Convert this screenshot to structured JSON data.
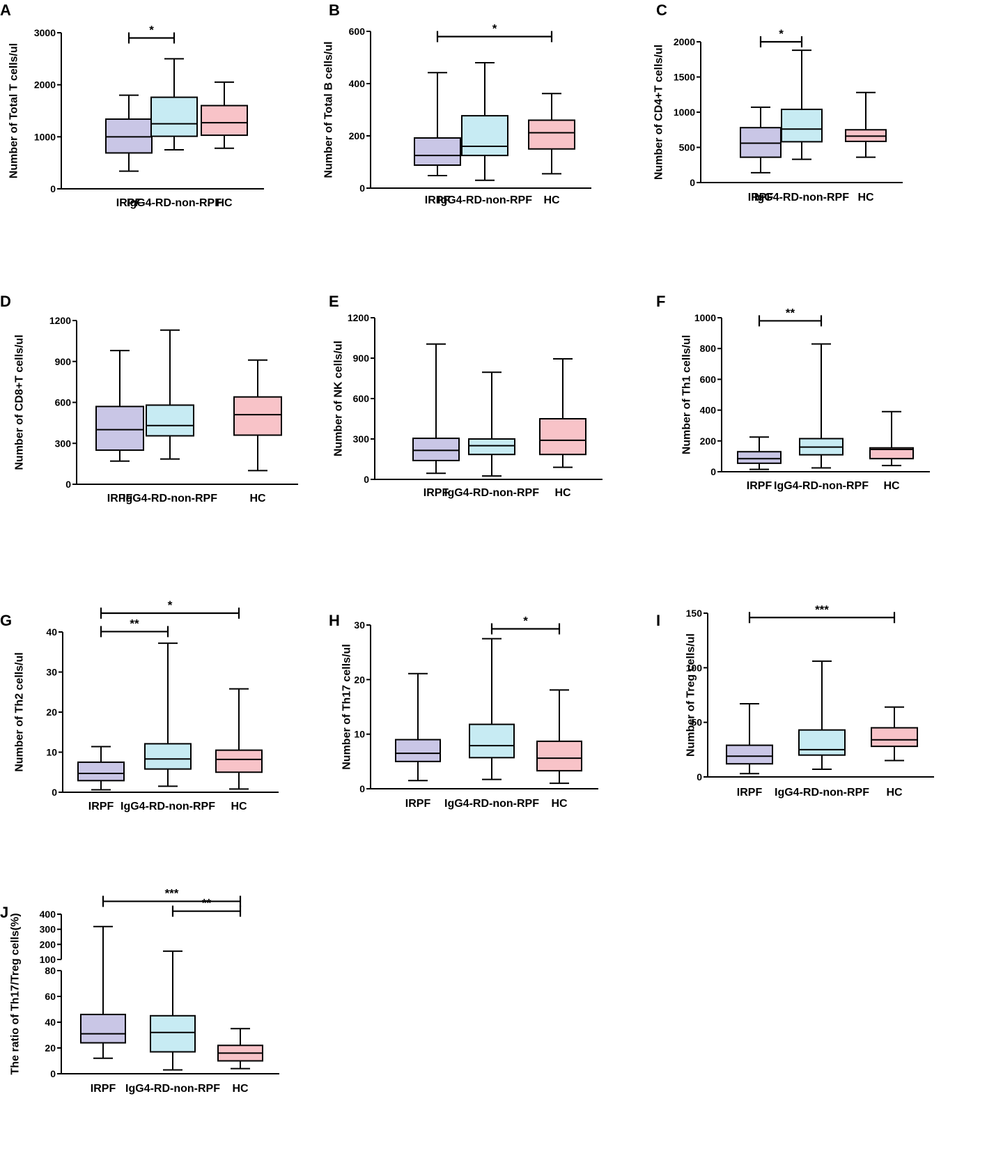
{
  "colors": {
    "IRPF": "#c9c6e6",
    "IgG4-RD-non-RPF": "#c7ebf3",
    "HC": "#f8c3c8",
    "line": "#000000"
  },
  "chart_data": [
    {
      "panel": "A",
      "type": "boxplot",
      "ylabel": "Number of Total T cells/ul",
      "categories": [
        "IRPF",
        "IgG4-RD-non-RPF",
        "HC"
      ],
      "ylim": [
        0,
        3000
      ],
      "yticks": [
        0,
        1000,
        2000,
        3000
      ],
      "boxes": [
        {
          "min": 340,
          "q1": 690,
          "median": 1000,
          "q3": 1340,
          "max": 1800
        },
        {
          "min": 750,
          "q1": 1010,
          "median": 1250,
          "q3": 1760,
          "max": 2500
        },
        {
          "min": 780,
          "q1": 1030,
          "median": 1270,
          "q3": 1600,
          "max": 2050
        }
      ],
      "sig": [
        {
          "from": 0,
          "to": 1,
          "label": "*",
          "y": 2900
        }
      ]
    },
    {
      "panel": "B",
      "type": "boxplot",
      "ylabel": "Number of Total B cells/ul",
      "categories": [
        "IRPF",
        "IgG4-RD-non-RPF",
        "HC"
      ],
      "ylim": [
        0,
        600
      ],
      "yticks": [
        0,
        200,
        400,
        600
      ],
      "boxes": [
        {
          "min": 48,
          "q1": 88,
          "median": 125,
          "q3": 192,
          "max": 442
        },
        {
          "min": 30,
          "q1": 125,
          "median": 160,
          "q3": 277,
          "max": 480
        },
        {
          "min": 55,
          "q1": 150,
          "median": 212,
          "q3": 260,
          "max": 362
        }
      ],
      "sig": [
        {
          "from": 0,
          "to": 2,
          "label": "*",
          "y": 580
        }
      ]
    },
    {
      "panel": "C",
      "type": "boxplot",
      "ylabel": "Number of CD4+T cells/ul",
      "categories": [
        "IRPF",
        "IgG4-RD-non-RPF",
        "HC"
      ],
      "ylim": [
        0,
        2000
      ],
      "yticks": [
        0,
        500,
        1000,
        1500,
        2000
      ],
      "boxes": [
        {
          "min": 140,
          "q1": 360,
          "median": 560,
          "q3": 780,
          "max": 1070
        },
        {
          "min": 330,
          "q1": 580,
          "median": 760,
          "q3": 1040,
          "max": 1880
        },
        {
          "min": 360,
          "q1": 585,
          "median": 660,
          "q3": 750,
          "max": 1280
        }
      ],
      "sig": [
        {
          "from": 0,
          "to": 1,
          "label": "*",
          "y": 2000
        }
      ]
    },
    {
      "panel": "D",
      "type": "boxplot",
      "ylabel": "Number of CD8+T cells/ul",
      "categories": [
        "IRPF",
        "IgG4-RD-non-RPF",
        "HC"
      ],
      "ylim": [
        0,
        1200
      ],
      "yticks": [
        0,
        300,
        600,
        900,
        1200
      ],
      "boxes": [
        {
          "min": 170,
          "q1": 250,
          "median": 400,
          "q3": 570,
          "max": 980
        },
        {
          "min": 185,
          "q1": 355,
          "median": 430,
          "q3": 580,
          "max": 1130
        },
        {
          "min": 100,
          "q1": 360,
          "median": 510,
          "q3": 640,
          "max": 910
        }
      ],
      "sig": []
    },
    {
      "panel": "E",
      "type": "boxplot",
      "ylabel": "Number of NK cells/ul",
      "categories": [
        "IRPF",
        "IgG4-RD-non-RPF",
        "HC"
      ],
      "ylim": [
        0,
        1200
      ],
      "yticks": [
        0,
        300,
        600,
        900,
        1200
      ],
      "boxes": [
        {
          "min": 45,
          "q1": 140,
          "median": 215,
          "q3": 305,
          "max": 1005
        },
        {
          "min": 25,
          "q1": 185,
          "median": 250,
          "q3": 300,
          "max": 795
        },
        {
          "min": 90,
          "q1": 185,
          "median": 290,
          "q3": 450,
          "max": 895
        }
      ],
      "sig": []
    },
    {
      "panel": "F",
      "type": "boxplot",
      "ylabel": "Number of Th1 cells/ul",
      "categories": [
        "IRPF",
        "IgG4-RD-non-RPF",
        "HC"
      ],
      "ylim": [
        0,
        1000
      ],
      "yticks": [
        0,
        200,
        400,
        600,
        800,
        1000
      ],
      "boxes": [
        {
          "min": 15,
          "q1": 55,
          "median": 85,
          "q3": 130,
          "max": 225
        },
        {
          "min": 25,
          "q1": 110,
          "median": 160,
          "q3": 215,
          "max": 830
        },
        {
          "min": 40,
          "q1": 85,
          "median": 145,
          "q3": 155,
          "max": 390
        }
      ],
      "sig": [
        {
          "from": 0,
          "to": 1,
          "label": "**",
          "y": 980
        }
      ]
    },
    {
      "panel": "G",
      "type": "boxplot",
      "ylabel": "Number of Th2 cells/ul",
      "categories": [
        "IRPF",
        "IgG4-RD-non-RPF",
        "HC"
      ],
      "ylim": [
        0,
        40
      ],
      "yticks": [
        0,
        10,
        20,
        30,
        40
      ],
      "boxes": [
        {
          "min": 0.6,
          "q1": 2.9,
          "median": 4.7,
          "q3": 7.5,
          "max": 11.4
        },
        {
          "min": 1.5,
          "q1": 5.8,
          "median": 8.3,
          "q3": 12.1,
          "max": 37.2
        },
        {
          "min": 0.8,
          "q1": 5.0,
          "median": 8.2,
          "q3": 10.5,
          "max": 25.8
        }
      ],
      "sig": [
        {
          "from": 0,
          "to": 1,
          "label": "**",
          "y": 40.1
        },
        {
          "from": 0,
          "to": 2,
          "label": "*",
          "y": 44.7
        }
      ]
    },
    {
      "panel": "H",
      "type": "boxplot",
      "ylabel": "Number of Th17 cells/ul",
      "categories": [
        "IRPF",
        "IgG4-RD-non-RPF",
        "HC"
      ],
      "ylim": [
        0,
        30
      ],
      "yticks": [
        0,
        10,
        20,
        30
      ],
      "boxes": [
        {
          "min": 1.5,
          "q1": 5.0,
          "median": 6.5,
          "q3": 9.0,
          "max": 21.1
        },
        {
          "min": 1.7,
          "q1": 5.7,
          "median": 7.9,
          "q3": 11.8,
          "max": 27.5
        },
        {
          "min": 1.0,
          "q1": 3.3,
          "median": 5.6,
          "q3": 8.7,
          "max": 18.1
        }
      ],
      "sig": [
        {
          "from": 1,
          "to": 2,
          "label": "*",
          "y": 29.3
        }
      ]
    },
    {
      "panel": "I",
      "type": "boxplot",
      "ylabel": "Number of Treg cells/ul",
      "categories": [
        "IRPF",
        "IgG4-RD-non-RPF",
        "HC"
      ],
      "ylim": [
        0,
        150
      ],
      "yticks": [
        0,
        50,
        100,
        150
      ],
      "boxes": [
        {
          "min": 3,
          "q1": 12,
          "median": 19,
          "q3": 29,
          "max": 67
        },
        {
          "min": 7,
          "q1": 20,
          "median": 25,
          "q3": 43,
          "max": 106
        },
        {
          "min": 15,
          "q1": 28,
          "median": 34,
          "q3": 45,
          "max": 64
        }
      ],
      "sig": [
        {
          "from": 0,
          "to": 2,
          "label": "***",
          "y": 146
        }
      ]
    },
    {
      "panel": "J",
      "type": "boxplot",
      "ylabel": "The ratio of Th17/Treg cells(%)",
      "categories": [
        "IRPF",
        "IgG4-RD-non-RPF",
        "HC"
      ],
      "broken_axis": true,
      "lower_ylim": [
        0,
        80
      ],
      "lower_yticks": [
        0,
        20,
        40,
        60,
        80
      ],
      "upper_ylim": [
        100,
        400
      ],
      "upper_yticks": [
        100,
        200,
        300,
        400
      ],
      "boxes": [
        {
          "min": 12,
          "q1": 24,
          "median": 31,
          "q3": 46,
          "max": 318
        },
        {
          "min": 3,
          "q1": 17,
          "median": 32,
          "q3": 45,
          "max": 155
        },
        {
          "min": 4,
          "q1": 10,
          "median": 16,
          "q3": 22,
          "max": 35
        }
      ],
      "sig": [
        {
          "from": 1,
          "to": 2,
          "label": "**",
          "y": 420
        },
        {
          "from": 0,
          "to": 2,
          "label": "***",
          "y": 485
        }
      ]
    }
  ]
}
